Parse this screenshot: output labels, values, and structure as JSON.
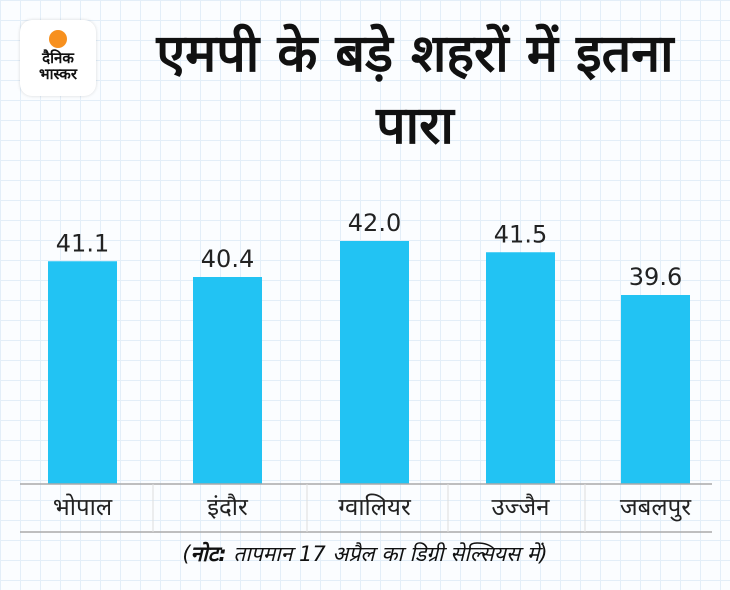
{
  "logo": {
    "line1": "दैनिक",
    "line2": "भास्कर"
  },
  "chart_data": {
    "type": "bar",
    "title": "एमपी के बड़े शहरों में इतना पारा",
    "categories": [
      "भोपाल",
      "इंदौर",
      "ग्वालियर",
      "उज्जैन",
      "जबलपुर"
    ],
    "values": [
      41.1,
      40.4,
      42.0,
      41.5,
      39.6
    ],
    "value_labels": [
      "41.1",
      "40.4",
      "42.0",
      "41.5",
      "39.6"
    ],
    "xlabel": "",
    "ylabel": "",
    "ylim": [
      31.2,
      42.0
    ],
    "bar_color": "#22c3f3",
    "note_bold": "नोट:",
    "note_text": "तापमान 17 अप्रैल का डिग्री सेल्सियस में"
  }
}
